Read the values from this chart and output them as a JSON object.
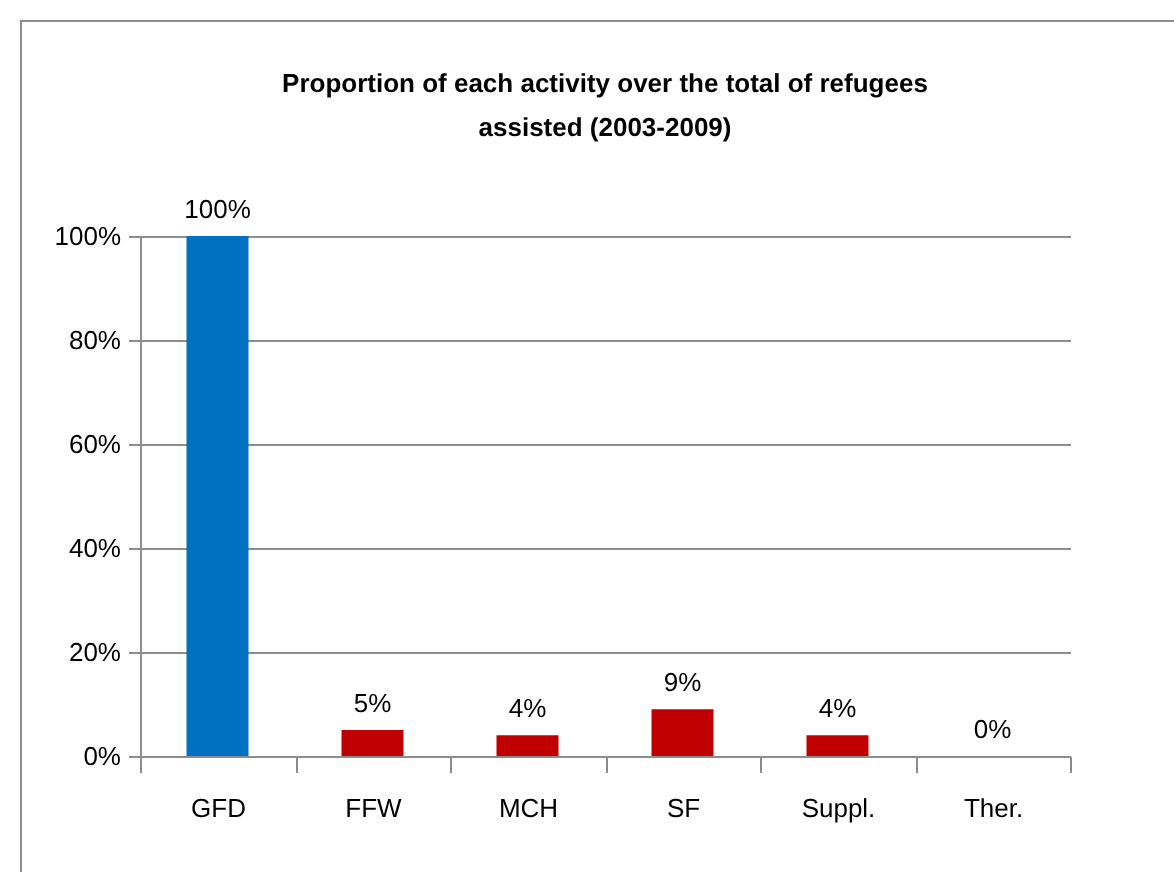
{
  "chart_data": {
    "type": "bar",
    "title": "Proportion of each activity over the total of refugees assisted   (2003-2009)",
    "categories": [
      "GFD",
      "FFW",
      "MCH",
      "SF",
      "Suppl.",
      "Ther."
    ],
    "values": [
      100,
      5,
      4,
      9,
      4,
      0
    ],
    "value_labels": [
      "100%",
      "5%",
      "4%",
      "9%",
      "4%",
      "0%"
    ],
    "colors": [
      "#0070c0",
      "#c00000",
      "#c00000",
      "#c00000",
      "#c00000",
      "#c00000"
    ],
    "ylim": [
      0,
      100
    ],
    "yticks": [
      {
        "value": 0,
        "label": "0%"
      },
      {
        "value": 20,
        "label": "20%"
      },
      {
        "value": 40,
        "label": "40%"
      },
      {
        "value": 60,
        "label": "60%"
      },
      {
        "value": 80,
        "label": "80%"
      },
      {
        "value": 100,
        "label": "100%"
      }
    ],
    "grid": "y"
  }
}
